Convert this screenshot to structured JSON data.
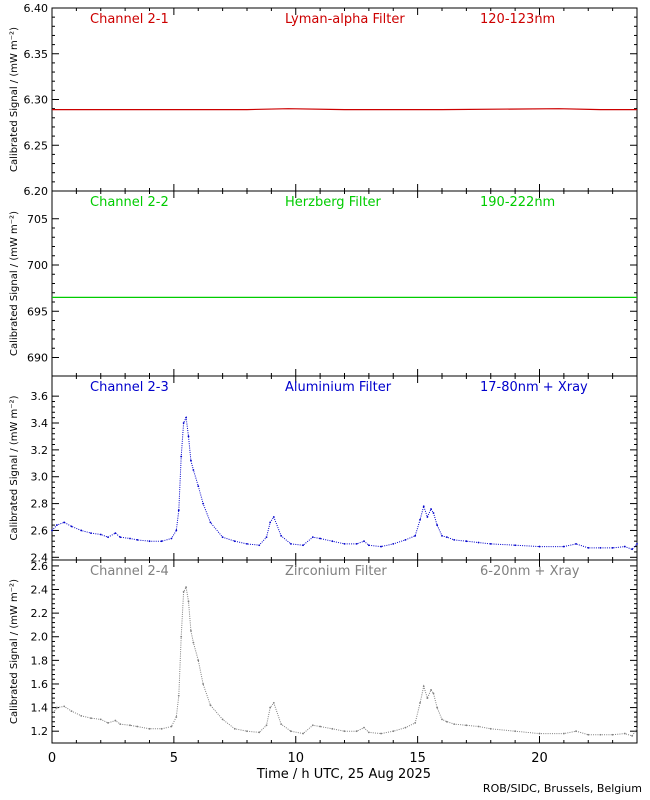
{
  "figure": {
    "xlabel": "Time / h UTC, 25 Aug 2025",
    "credit": "ROB/SIDC, Brussels, Belgium",
    "xlim": [
      0,
      24
    ],
    "xticks": [
      0,
      5,
      10,
      15,
      20
    ],
    "xtick_labels": [
      "0",
      "5",
      "10",
      "15",
      "20"
    ]
  },
  "chart_data": [
    {
      "type": "line",
      "channel": "Channel 2-1",
      "filter": "Lyman-alpha Filter",
      "band": "120-123nm",
      "ylabel": "Calibrated Signal / (mW m⁻²)",
      "color": "#cc0000",
      "ylim": [
        6.2,
        6.4
      ],
      "yticks": [
        6.2,
        6.25,
        6.3,
        6.35,
        6.4
      ],
      "ytick_labels": [
        "6.20",
        "6.25",
        "6.30",
        "6.35",
        "6.40"
      ],
      "x": [
        0,
        4,
        8,
        9.7,
        12,
        16,
        20.8,
        22.5,
        24
      ],
      "y": [
        6.289,
        6.289,
        6.289,
        6.29,
        6.289,
        6.289,
        6.29,
        6.289,
        6.289
      ]
    },
    {
      "type": "line",
      "channel": "Channel 2-2",
      "filter": "Herzberg Filter",
      "band": "190-222nm",
      "ylabel": "Calibrated Signal / (mW m⁻²)",
      "color": "#00cc00",
      "ylim": [
        688,
        708
      ],
      "yticks": [
        690,
        695,
        700,
        705
      ],
      "ytick_labels": [
        "690",
        "695",
        "700",
        "705"
      ],
      "x": [
        0,
        4,
        8,
        12,
        16,
        20,
        24
      ],
      "y": [
        696.5,
        696.5,
        696.5,
        696.5,
        696.5,
        696.5,
        696.5
      ]
    },
    {
      "type": "scatter",
      "channel": "Channel 2-3",
      "filter": "Aluminium Filter",
      "band": "17-80nm + Xray",
      "ylabel": "Calibrated Signal / (mW m⁻²)",
      "color": "#0000cc",
      "ylim": [
        2.38,
        3.75
      ],
      "yticks": [
        2.4,
        2.6,
        2.8,
        3.0,
        3.2,
        3.4,
        3.6
      ],
      "ytick_labels": [
        "2.4",
        "2.6",
        "2.8",
        "3.0",
        "3.2",
        "3.4",
        "3.6"
      ],
      "x": [
        0,
        0.2,
        0.5,
        0.8,
        1.2,
        1.6,
        2.0,
        2.3,
        2.6,
        2.8,
        3.2,
        3.5,
        4.0,
        4.5,
        4.9,
        5.1,
        5.2,
        5.3,
        5.4,
        5.5,
        5.6,
        5.7,
        5.8,
        6.0,
        6.2,
        6.5,
        7.0,
        7.5,
        8.0,
        8.5,
        8.8,
        8.95,
        9.1,
        9.4,
        9.8,
        10.3,
        10.7,
        11.0,
        11.5,
        12.0,
        12.5,
        12.8,
        13.0,
        13.5,
        14.0,
        14.5,
        14.9,
        15.1,
        15.25,
        15.4,
        15.55,
        15.65,
        15.8,
        16.0,
        16.2,
        16.5,
        17.0,
        17.5,
        18.0,
        19.0,
        20.0,
        21.0,
        21.5,
        22.0,
        22.5,
        23.0,
        23.5,
        23.8,
        24.0
      ],
      "y": [
        2.6,
        2.64,
        2.66,
        2.63,
        2.6,
        2.58,
        2.57,
        2.55,
        2.58,
        2.55,
        2.54,
        2.53,
        2.52,
        2.52,
        2.54,
        2.6,
        2.75,
        3.15,
        3.4,
        3.44,
        3.3,
        3.12,
        3.05,
        2.93,
        2.8,
        2.66,
        2.55,
        2.52,
        2.5,
        2.49,
        2.55,
        2.66,
        2.7,
        2.56,
        2.5,
        2.49,
        2.55,
        2.54,
        2.52,
        2.5,
        2.5,
        2.52,
        2.49,
        2.48,
        2.5,
        2.53,
        2.56,
        2.68,
        2.78,
        2.7,
        2.76,
        2.73,
        2.64,
        2.56,
        2.55,
        2.53,
        2.52,
        2.51,
        2.5,
        2.49,
        2.48,
        2.48,
        2.5,
        2.47,
        2.47,
        2.47,
        2.48,
        2.46,
        2.5
      ]
    },
    {
      "type": "scatter",
      "channel": "Channel 2-4",
      "filter": "Zirconium Filter",
      "band": "6-20nm + Xray",
      "ylabel": "Calibrated Signal / (mW m⁻²)",
      "color": "#808080",
      "ylim": [
        1.1,
        2.65
      ],
      "yticks": [
        1.2,
        1.4,
        1.6,
        1.8,
        2.0,
        2.2,
        2.4,
        2.6
      ],
      "ytick_labels": [
        "1.2",
        "1.4",
        "1.6",
        "1.8",
        "2.0",
        "2.2",
        "2.4",
        "2.6"
      ],
      "x": [
        0,
        0.2,
        0.5,
        0.8,
        1.2,
        1.6,
        2.0,
        2.3,
        2.6,
        2.8,
        3.2,
        3.5,
        4.0,
        4.5,
        4.9,
        5.1,
        5.2,
        5.3,
        5.4,
        5.5,
        5.6,
        5.7,
        5.8,
        6.0,
        6.2,
        6.5,
        7.0,
        7.5,
        8.0,
        8.5,
        8.8,
        8.95,
        9.1,
        9.4,
        9.8,
        10.3,
        10.7,
        11.0,
        11.5,
        12.0,
        12.5,
        12.8,
        13.0,
        13.5,
        14.0,
        14.5,
        14.9,
        15.1,
        15.25,
        15.4,
        15.55,
        15.65,
        15.8,
        16.0,
        16.2,
        16.5,
        17.0,
        17.5,
        18.0,
        19.0,
        20.0,
        21.0,
        21.5,
        22.0,
        22.5,
        23.0,
        23.5,
        23.8,
        24.0
      ],
      "y": [
        1.34,
        1.4,
        1.41,
        1.37,
        1.33,
        1.31,
        1.3,
        1.27,
        1.29,
        1.26,
        1.25,
        1.24,
        1.22,
        1.22,
        1.24,
        1.32,
        1.5,
        2.0,
        2.38,
        2.42,
        2.3,
        2.05,
        1.95,
        1.8,
        1.6,
        1.42,
        1.3,
        1.22,
        1.2,
        1.19,
        1.25,
        1.4,
        1.44,
        1.26,
        1.2,
        1.18,
        1.25,
        1.24,
        1.22,
        1.2,
        1.2,
        1.23,
        1.19,
        1.18,
        1.2,
        1.23,
        1.27,
        1.44,
        1.58,
        1.48,
        1.55,
        1.52,
        1.4,
        1.3,
        1.28,
        1.26,
        1.25,
        1.24,
        1.22,
        1.2,
        1.18,
        1.18,
        1.2,
        1.17,
        1.17,
        1.17,
        1.18,
        1.16,
        1.22
      ]
    }
  ]
}
